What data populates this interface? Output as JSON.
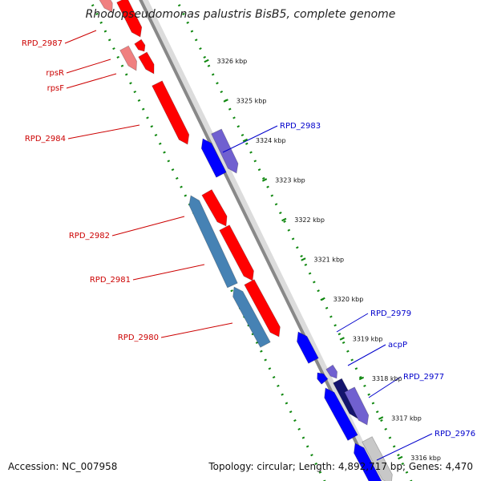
{
  "title": "Rhodopseudomonas palustris BisB5, complete genome",
  "footer": {
    "accession": "Accession: NC_007958",
    "summary": "Topology: circular; Length: 4,892,717 bp; Genes: 4,470"
  },
  "colors": {
    "forward_gene": "#ff0000",
    "forward_gene_faded": "#f08080",
    "reverse_gene": "#0000ff",
    "reverse_gene_light": "#7060d0",
    "reverse_gene_dark": "#14146e",
    "rna_feature": "#4682b4",
    "backbone": "#888888",
    "gc_ticks": "#118811",
    "grey_feature": "#c8c8c8"
  },
  "ticks": [
    "3326 kbp",
    "3325 kbp",
    "3324 kbp",
    "3323 kbp",
    "3322 kbp",
    "3321 kbp",
    "3320 kbp",
    "3319 kbp",
    "3318 kbp",
    "3317 kbp",
    "3316 kbp"
  ],
  "genes_left": [
    "RPD_2987",
    "rpsR",
    "rpsF",
    "RPD_2984",
    "RPD_2982",
    "RPD_2981",
    "RPD_2980"
  ],
  "genes_right": [
    "RPD_2983",
    "RPD_2979",
    "acpP",
    "RPD_2977",
    "RPD_2976"
  ]
}
